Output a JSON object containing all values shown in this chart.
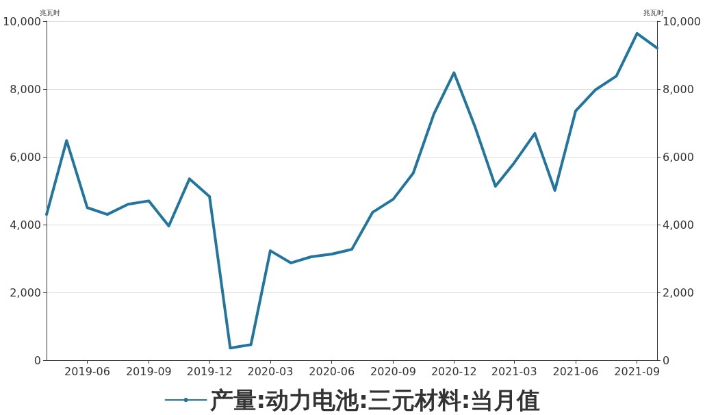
{
  "chart_data": {
    "type": "line",
    "ylabel": "兆瓦时",
    "y2label": "兆瓦时",
    "x": [
      "2019-04",
      "2019-05",
      "2019-06",
      "2019-07",
      "2019-08",
      "2019-09",
      "2019-10",
      "2019-11",
      "2019-12",
      "2020-01",
      "2020-02",
      "2020-03",
      "2020-04",
      "2020-05",
      "2020-06",
      "2020-07",
      "2020-08",
      "2020-09",
      "2020-10",
      "2020-11",
      "2020-12",
      "2021-01",
      "2021-02",
      "2021-03",
      "2021-04",
      "2021-05",
      "2021-06",
      "2021-07",
      "2021-08",
      "2021-09",
      "2021-10"
    ],
    "series": [
      {
        "name": "产量:动力电池:三元材料:当月值",
        "color": "#21759f",
        "values": [
          4300,
          6480,
          4500,
          4300,
          4600,
          4700,
          3960,
          5350,
          4830,
          360,
          460,
          3230,
          2870,
          3050,
          3130,
          3270,
          4360,
          4750,
          5520,
          7270,
          8480,
          6910,
          5130,
          5820,
          6690,
          5010,
          7350,
          7980,
          8380,
          9640,
          9210
        ]
      }
    ],
    "xlim": [
      "2019-04",
      "2021-10"
    ],
    "xticks": [
      "2019-06",
      "2019-09",
      "2019-12",
      "2020-03",
      "2020-06",
      "2020-09",
      "2020-12",
      "2021-03",
      "2021-06",
      "2021-09"
    ],
    "ylim": [
      0,
      10000
    ],
    "yticks": [
      {
        "value": 0,
        "label": "0"
      },
      {
        "value": 2000,
        "label": "2,000"
      },
      {
        "value": 4000,
        "label": "4,000"
      },
      {
        "value": 6000,
        "label": "6,000"
      },
      {
        "value": 8000,
        "label": "8,000"
      },
      {
        "value": 10000,
        "label": "10,000"
      }
    ],
    "y2lim": [
      0,
      10000
    ],
    "y2ticks": [
      {
        "value": 0,
        "label": "0"
      },
      {
        "value": 2000,
        "label": "2,000"
      },
      {
        "value": 4000,
        "label": "4,000"
      },
      {
        "value": 6000,
        "label": "6,000"
      },
      {
        "value": 8000,
        "label": "8,000"
      },
      {
        "value": 10000,
        "label": "10,000"
      }
    ],
    "grid": "y",
    "legend": "bottom",
    "marker": "none",
    "line_style": "solid"
  }
}
